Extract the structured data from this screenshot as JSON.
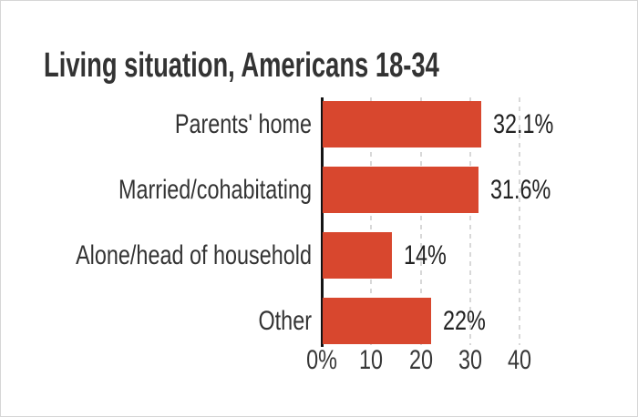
{
  "chart_data": {
    "type": "bar",
    "orientation": "horizontal",
    "title": "Living situation, Americans 18-34",
    "categories": [
      "Parents' home",
      "Married/cohabitating",
      "Alone/head of household",
      "Other"
    ],
    "values": [
      32.1,
      31.6,
      14,
      22
    ],
    "value_labels": [
      "32.1%",
      "31.6%",
      "14%",
      "22%"
    ],
    "x_ticks": [
      {
        "label": "0%",
        "value": 0
      },
      {
        "label": "10",
        "value": 10
      },
      {
        "label": "20",
        "value": 20
      },
      {
        "label": "30",
        "value": 30
      },
      {
        "label": "40",
        "value": 40
      }
    ],
    "xlim": [
      0,
      44
    ],
    "grid": "vertical-dashed-at-10-20-30-40",
    "legend": "none",
    "bar_color": "#d8472e",
    "axis_line_color": "#141414",
    "gridline_color": "#d8d8d8",
    "title_color": "#333333",
    "label_color": "#333333",
    "value_color": "#222222",
    "tick_color": "#383838",
    "card_border_color": "#d6d6d6",
    "background_color": "#ffffff"
  }
}
